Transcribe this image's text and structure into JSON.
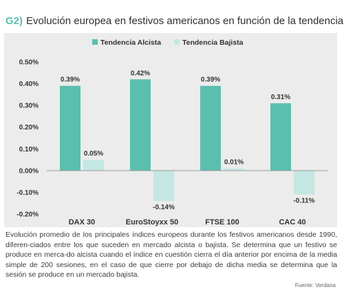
{
  "header": {
    "code": "G2)",
    "title": "Evolución europea en festivos americanos en función de la tendencia"
  },
  "chart_data": {
    "type": "bar",
    "categories": [
      "DAX 30",
      "EuroStoyxx 50",
      "FTSE 100",
      "CAC 40"
    ],
    "series": [
      {
        "name": "Tendencia Alcista",
        "values": [
          0.39,
          0.42,
          0.39,
          0.31
        ],
        "labels": [
          "0.39%",
          "0.42%",
          "0.39%",
          "0.31%"
        ],
        "color": "#5bbfb0"
      },
      {
        "name": "Tendencia Bajista",
        "values": [
          0.05,
          -0.14,
          0.01,
          -0.11
        ],
        "labels": [
          "0.05%",
          "-0.14%",
          "0.01%",
          "-0.11%"
        ],
        "color": "#c4e7e3"
      }
    ],
    "y_ticks": [
      0.5,
      0.4,
      0.3,
      0.2,
      0.1,
      0.0,
      -0.1,
      -0.2
    ],
    "y_tick_labels": [
      "0.50%",
      "0.40%",
      "0.30%",
      "0.20%",
      "0.10%",
      "0.00%",
      "-0.10%",
      "-0.20%"
    ],
    "ylim": [
      -0.2,
      0.5
    ],
    "legend_position": "top-center",
    "grid": false
  },
  "caption": "Evolución promedio de los principales índices europeos durante los festivos americanos desde 1990, diferen-ciados entre los que suceden en mercado alcista o bajista. Se determina que un festivo se produce en merca-do alcista cuando el índice en cuestión cierra el día anterior por encima de la media simple de 200 sesiones, en el caso de que cierre por debajo de dicha media se determina que la sesión se produce en un mercado bajista.",
  "source": "Fuente: Verdana"
}
